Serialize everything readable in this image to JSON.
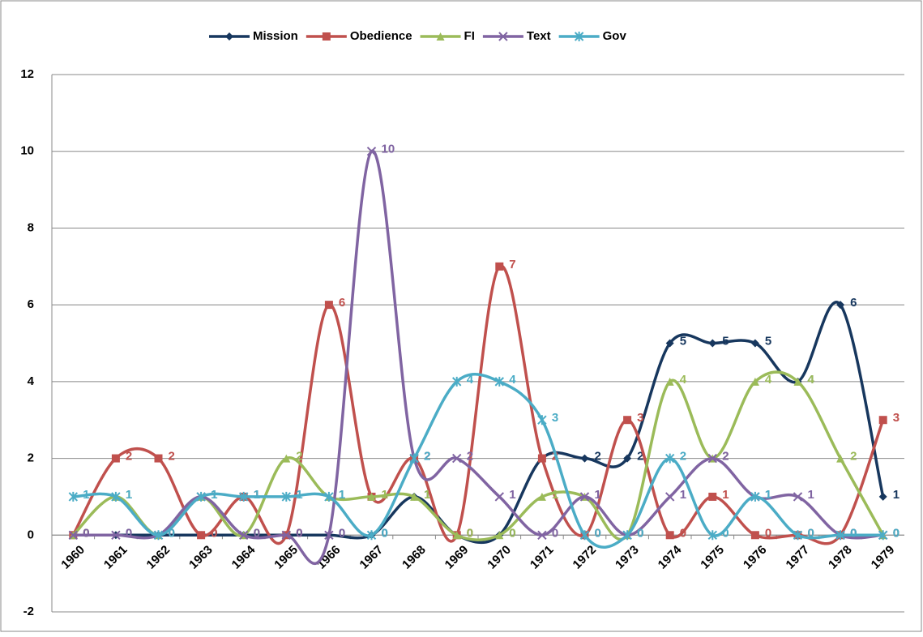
{
  "chart_data": {
    "type": "line",
    "smooth": true,
    "categories": [
      "1960",
      "1961",
      "1962",
      "1963",
      "1964",
      "1965",
      "1966",
      "1967",
      "1968",
      "1969",
      "1970",
      "1971",
      "1972",
      "1973",
      "1974",
      "1975",
      "1976",
      "1977",
      "1978",
      "1979"
    ],
    "series": [
      {
        "name": "Mission",
        "color": "#17375e",
        "marker": "diamond",
        "values": [
          0,
          0,
          0,
          0,
          0,
          0,
          0,
          0,
          1,
          0,
          0,
          2,
          2,
          2,
          5,
          5,
          5,
          4,
          6,
          1
        ]
      },
      {
        "name": "Obedience",
        "color": "#c0504d",
        "marker": "square",
        "values": [
          0,
          2,
          2,
          0,
          1,
          0,
          6,
          1,
          2,
          0,
          7,
          2,
          0,
          3,
          0,
          1,
          0,
          0,
          0,
          3
        ]
      },
      {
        "name": "FI",
        "color": "#9bbb59",
        "marker": "triangle",
        "values": [
          0,
          1,
          0,
          1,
          0,
          2,
          1,
          1,
          1,
          0,
          0,
          1,
          1,
          0,
          4,
          2,
          4,
          4,
          2,
          0
        ]
      },
      {
        "name": "Text",
        "color": "#8064a2",
        "marker": "x",
        "values": [
          0,
          0,
          0,
          1,
          0,
          0,
          0,
          10,
          2,
          2,
          1,
          0,
          1,
          0,
          1,
          2,
          1,
          1,
          0,
          0
        ]
      },
      {
        "name": "Gov",
        "color": "#4bacc6",
        "marker": "star",
        "values": [
          1,
          1,
          0,
          1,
          1,
          1,
          1,
          0,
          2,
          4,
          4,
          3,
          0,
          0,
          2,
          0,
          1,
          0,
          0,
          0
        ]
      }
    ],
    "ylim": [
      -2,
      12
    ],
    "yticks": [
      -2,
      0,
      2,
      4,
      6,
      8,
      10,
      12
    ],
    "grid": true,
    "legend": "top",
    "data_labels": true
  }
}
